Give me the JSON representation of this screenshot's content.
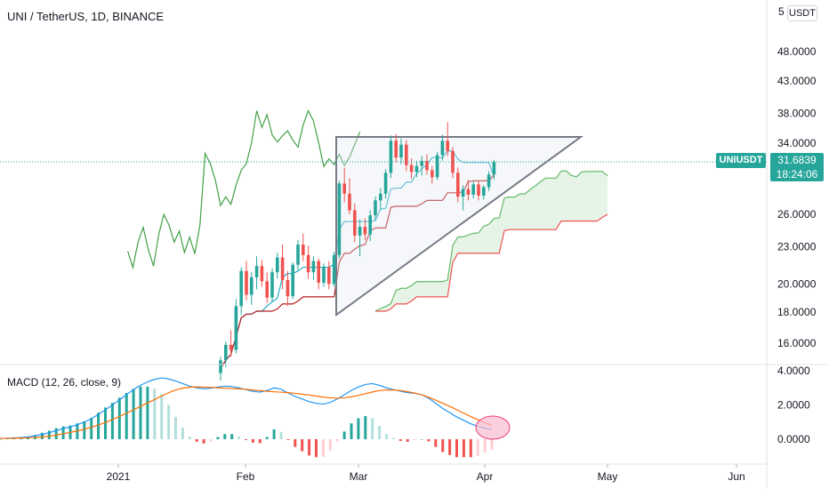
{
  "header": {
    "title": "UNI / TetherUS, 1D, BINANCE",
    "currency_badge": "USDT",
    "top_tick": "5"
  },
  "macd": {
    "title": "MACD (12, 26, close, 9)",
    "y_ticks": [
      "4.0000",
      "2.0000",
      "0.0000"
    ]
  },
  "price_axis": {
    "ticks": [
      {
        "label": "48.0000",
        "value": 48
      },
      {
        "label": "43.0000",
        "value": 43
      },
      {
        "label": "38.0000",
        "value": 38
      },
      {
        "label": "34.0000",
        "value": 34
      },
      {
        "label": "26.0000",
        "value": 26
      },
      {
        "label": "23.0000",
        "value": 23
      },
      {
        "label": "20.0000",
        "value": 20
      },
      {
        "label": "18.0000",
        "value": 18
      },
      {
        "label": "16.0000",
        "value": 16
      }
    ]
  },
  "last_price": {
    "symbol": "UNIUSDT",
    "price": "31.6839",
    "countdown": "18:24:06",
    "value": 31.6839
  },
  "time_axis": [
    "2021",
    "Feb",
    "Mar",
    "Apr",
    "May",
    "Jun"
  ],
  "colors": {
    "up": "#26a69a",
    "down": "#ef5350",
    "conversion": "#26a9c9",
    "base": "#b71c1c",
    "lagging": "#43a047",
    "span_a": "#66bb6a",
    "span_b": "#ef5350",
    "macd_line": "#2196f3",
    "signal_line": "#ff6d00",
    "triangle": "#787b86"
  },
  "chart_data": {
    "type": "candlestick",
    "candles": [
      [
        14.3,
        15.2,
        13.9,
        15.0
      ],
      [
        15.0,
        16.1,
        14.6,
        15.9
      ],
      [
        15.9,
        16.8,
        15.2,
        15.6
      ],
      [
        15.6,
        18.9,
        15.4,
        18.4
      ],
      [
        18.4,
        21.3,
        17.8,
        21.0
      ],
      [
        21.0,
        21.8,
        18.8,
        19.2
      ],
      [
        19.2,
        20.9,
        18.5,
        20.5
      ],
      [
        20.5,
        22.2,
        19.6,
        21.4
      ],
      [
        21.4,
        21.9,
        19.8,
        20.2
      ],
      [
        20.2,
        20.9,
        18.6,
        19.0
      ],
      [
        19.0,
        21.2,
        18.7,
        20.9
      ],
      [
        20.9,
        22.5,
        20.4,
        22.1
      ],
      [
        22.1,
        23.2,
        19.6,
        20.3
      ],
      [
        20.3,
        21.0,
        18.4,
        19.1
      ],
      [
        19.1,
        21.7,
        18.9,
        21.5
      ],
      [
        21.5,
        23.6,
        21.1,
        23.2
      ],
      [
        23.2,
        24.2,
        21.8,
        22.3
      ],
      [
        22.3,
        23.1,
        20.4,
        20.9
      ],
      [
        20.9,
        22.2,
        20.3,
        21.8
      ],
      [
        21.8,
        22.0,
        19.6,
        20.1
      ],
      [
        20.1,
        21.6,
        19.8,
        21.3
      ],
      [
        21.3,
        21.8,
        19.6,
        20.0
      ],
      [
        20.0,
        22.6,
        19.8,
        22.3
      ],
      [
        22.3,
        29.5,
        22.0,
        29.2
      ],
      [
        29.2,
        31.0,
        27.2,
        28.1
      ],
      [
        28.1,
        29.8,
        26.0,
        26.4
      ],
      [
        26.4,
        27.1,
        23.4,
        24.0
      ],
      [
        24.0,
        25.5,
        22.2,
        24.8
      ],
      [
        24.8,
        25.6,
        23.6,
        24.1
      ],
      [
        24.1,
        26.4,
        23.5,
        25.9
      ],
      [
        25.9,
        27.8,
        25.4,
        27.4
      ],
      [
        27.4,
        28.7,
        26.5,
        28.1
      ],
      [
        28.1,
        30.8,
        27.6,
        30.4
      ],
      [
        30.4,
        35.0,
        29.8,
        34.3
      ],
      [
        34.3,
        35.2,
        31.6,
        32.2
      ],
      [
        32.2,
        34.6,
        31.4,
        33.8
      ],
      [
        33.8,
        34.4,
        30.6,
        31.3
      ],
      [
        31.3,
        32.1,
        29.7,
        30.5
      ],
      [
        30.5,
        31.8,
        29.9,
        31.2
      ],
      [
        31.2,
        32.4,
        30.1,
        31.8
      ],
      [
        31.8,
        32.6,
        30.2,
        30.7
      ],
      [
        30.7,
        31.2,
        29.2,
        29.9
      ],
      [
        29.9,
        32.9,
        29.6,
        32.5
      ],
      [
        32.5,
        35.1,
        31.8,
        34.3
      ],
      [
        34.3,
        36.8,
        32.4,
        33.0
      ],
      [
        33.0,
        33.5,
        29.8,
        30.4
      ],
      [
        30.4,
        31.0,
        27.2,
        27.8
      ],
      [
        27.8,
        29.0,
        26.4,
        28.6
      ],
      [
        28.6,
        29.6,
        27.4,
        28.0
      ],
      [
        28.0,
        29.4,
        27.6,
        29.1
      ],
      [
        29.1,
        29.5,
        27.4,
        27.9
      ],
      [
        27.9,
        29.0,
        27.5,
        28.8
      ],
      [
        28.8,
        30.6,
        28.4,
        30.2
      ],
      [
        30.2,
        31.9,
        29.6,
        31.6839
      ]
    ],
    "macd_values": [
      0.05,
      0.06,
      0.08,
      0.1,
      0.14,
      0.2,
      0.28,
      0.38,
      0.5,
      0.62,
      0.72,
      0.85,
      1.0,
      1.2,
      1.45,
      1.72,
      2.0,
      2.3,
      2.6,
      2.9,
      3.15,
      3.35,
      3.5,
      3.58,
      3.52,
      3.4,
      3.25,
      3.1,
      3.0,
      2.95,
      2.98,
      3.05,
      3.1,
      3.08,
      3.0,
      2.9,
      2.8,
      2.75,
      2.85,
      3.0,
      2.92,
      2.7,
      2.5,
      2.35,
      2.2,
      2.1,
      2.05,
      2.15,
      2.35,
      2.6,
      2.85,
      3.05,
      3.2,
      3.25,
      3.15,
      3.0,
      2.9,
      2.8,
      2.72,
      2.68,
      2.6,
      2.4,
      2.1,
      1.8,
      1.55,
      1.3,
      1.1,
      0.9,
      0.75,
      0.65,
      0.55
    ],
    "signal_values": [
      0.05,
      0.05,
      0.06,
      0.07,
      0.08,
      0.1,
      0.13,
      0.18,
      0.24,
      0.32,
      0.4,
      0.48,
      0.58,
      0.7,
      0.83,
      0.98,
      1.15,
      1.33,
      1.52,
      1.72,
      1.92,
      2.12,
      2.32,
      2.52,
      2.72,
      2.88,
      2.98,
      3.04,
      3.06,
      3.05,
      3.03,
      3.0,
      2.98,
      2.96,
      2.94,
      2.92,
      2.88,
      2.84,
      2.8,
      2.77,
      2.75,
      2.72,
      2.68,
      2.63,
      2.58,
      2.52,
      2.46,
      2.42,
      2.4,
      2.42,
      2.48,
      2.56,
      2.66,
      2.76,
      2.84,
      2.88,
      2.87,
      2.84,
      2.78,
      2.7,
      2.6,
      2.45,
      2.28,
      2.1,
      1.92,
      1.72,
      1.52,
      1.32,
      1.14,
      0.96,
      0.8
    ],
    "x_axis_labels": [
      "2021",
      "Feb",
      "Mar",
      "Apr",
      "May",
      "Jun"
    ]
  }
}
